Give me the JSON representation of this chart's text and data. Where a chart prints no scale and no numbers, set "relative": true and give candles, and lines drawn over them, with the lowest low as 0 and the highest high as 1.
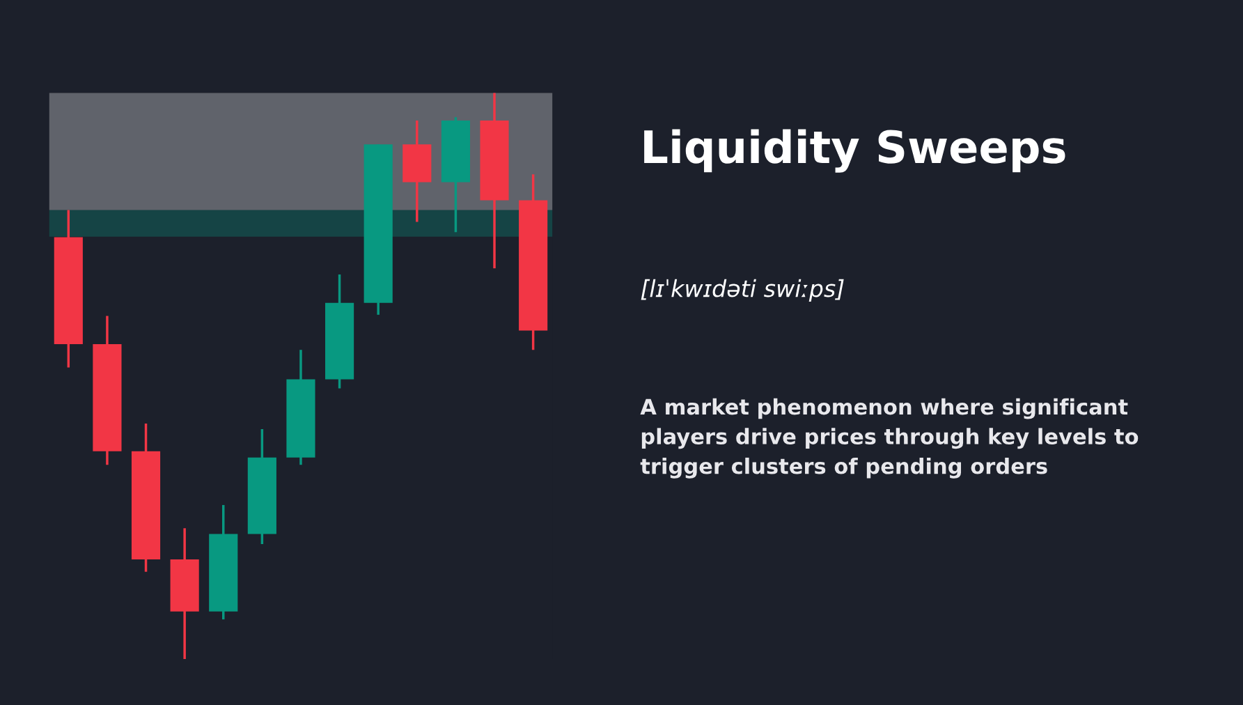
{
  "chart_data": {
    "type": "candlestick",
    "title": "Liquidity Sweeps",
    "subtitle": "[lɪˈkwɪdəti swiːps]",
    "annotations": [
      "A market phenomenon where significant\nplayers drive prices through key levels to\ntrigger clusters of pending orders"
    ],
    "relative": true,
    "categories": [
      null,
      null,
      null,
      null,
      null,
      null,
      null,
      null,
      null,
      null,
      null,
      null,
      null
    ],
    "ohlc": [
      [
        0.745,
        0.793,
        0.515,
        0.556
      ],
      [
        0.556,
        0.606,
        0.343,
        0.367
      ],
      [
        0.367,
        0.416,
        0.154,
        0.176
      ],
      [
        0.176,
        0.231,
        0.0,
        0.084
      ],
      [
        0.084,
        0.272,
        0.07,
        0.221
      ],
      [
        0.221,
        0.406,
        0.203,
        0.356
      ],
      [
        0.356,
        0.546,
        0.343,
        0.494
      ],
      [
        0.494,
        0.679,
        0.478,
        0.629
      ],
      [
        0.629,
        0.909,
        0.608,
        0.909
      ],
      [
        0.909,
        0.951,
        0.772,
        0.842
      ],
      [
        0.842,
        0.957,
        0.754,
        0.951
      ],
      [
        0.951,
        1.0,
        0.69,
        0.81
      ],
      [
        0.81,
        0.856,
        0.546,
        0.58
      ]
    ],
    "colors": [
      "#f23645",
      "#f23645",
      "#f23645",
      "#f23645",
      "#089981",
      "#089981",
      "#089981",
      "#089981",
      "#089981",
      "#f23645",
      "#089981",
      "#f23645",
      "#f23645"
    ],
    "bands": [
      {
        "axis": "y",
        "from": 0.746,
        "to": 0.793,
        "color": "#089981"
      },
      {
        "axis": "y",
        "from": 0.793,
        "to": 1.0,
        "color": "#ffffff"
      }
    ],
    "grid": false
  }
}
